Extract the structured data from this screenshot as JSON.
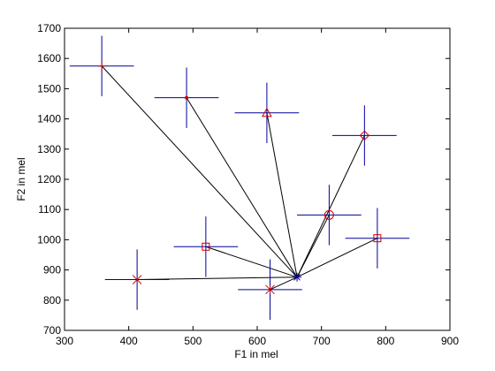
{
  "chart_data": {
    "type": "scatter",
    "title": "",
    "xlabel": "F1 in mel",
    "ylabel": "F2 in mel",
    "xlim": [
      300,
      900
    ],
    "ylim": [
      700,
      1700
    ],
    "xticks": [
      300,
      400,
      500,
      600,
      700,
      800,
      900
    ],
    "yticks": [
      700,
      800,
      900,
      1000,
      1100,
      1200,
      1300,
      1400,
      1500,
      1600,
      1700
    ],
    "grid": false,
    "center": {
      "x": 662,
      "y": 876,
      "marker": "star"
    },
    "points": [
      {
        "x": 358,
        "y": 1575,
        "marker": "plus",
        "err_x": 50,
        "err_y": 100
      },
      {
        "x": 490,
        "y": 1470,
        "marker": "dot",
        "err_x": 50,
        "err_y": 100
      },
      {
        "x": 615,
        "y": 1420,
        "marker": "triangle",
        "err_x": 50,
        "err_y": 100
      },
      {
        "x": 767,
        "y": 1345,
        "marker": "diamond",
        "err_x": 50,
        "err_y": 100
      },
      {
        "x": 712,
        "y": 1082,
        "marker": "circle",
        "err_x": 50,
        "err_y": 100
      },
      {
        "x": 787,
        "y": 1005,
        "marker": "square",
        "err_x": 50,
        "err_y": 100
      },
      {
        "x": 520,
        "y": 977,
        "marker": "square",
        "err_x": 50,
        "err_y": 100
      },
      {
        "x": 413,
        "y": 868,
        "marker": "x",
        "err_x": 50,
        "err_y": 100
      },
      {
        "x": 620,
        "y": 835,
        "marker": "asterisk",
        "err_x": 50,
        "err_y": 100
      }
    ],
    "colors": {
      "errorbar": "#000099",
      "marker": "#cc0000",
      "line": "#000000",
      "axis": "#000000"
    }
  }
}
